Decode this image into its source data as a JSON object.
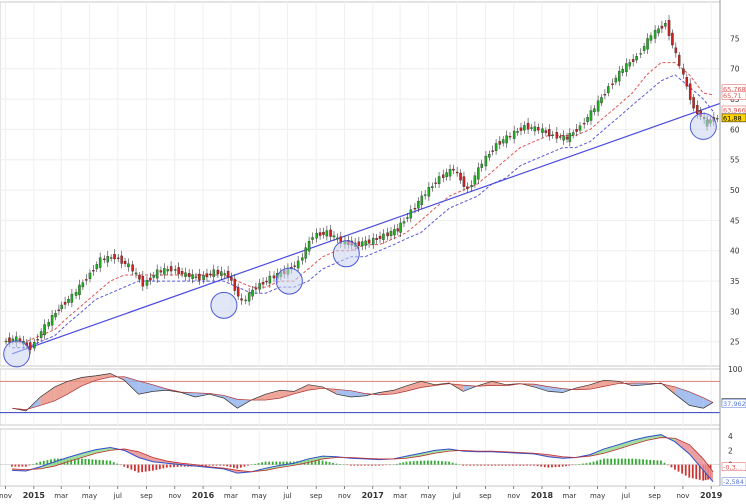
{
  "chart_data": [
    {
      "type": "candlestick",
      "panel": "price",
      "x": [
        "2014-11-15",
        "2014-12-15",
        "2015-01-15",
        "2015-02-15",
        "2015-03-15",
        "2015-04-15",
        "2015-05-15",
        "2015-06-15",
        "2015-07-15",
        "2015-08-15",
        "2015-09-15",
        "2015-10-15",
        "2015-11-15",
        "2015-12-15",
        "2016-01-15",
        "2016-02-15",
        "2016-03-15",
        "2016-04-15",
        "2016-05-15",
        "2016-06-15",
        "2016-07-15",
        "2016-08-15",
        "2016-09-15",
        "2016-10-15",
        "2016-11-15",
        "2016-12-15",
        "2017-01-15",
        "2017-02-15",
        "2017-03-15",
        "2017-04-15",
        "2017-05-15",
        "2017-06-15",
        "2017-07-15",
        "2017-08-15",
        "2017-09-15",
        "2017-10-15",
        "2017-11-15",
        "2017-12-15",
        "2018-01-15",
        "2018-02-15",
        "2018-03-15",
        "2018-04-15",
        "2018-05-15",
        "2018-06-15",
        "2018-07-15",
        "2018-08-15",
        "2018-09-15",
        "2018-10-15",
        "2018-11-15",
        "2018-12-15",
        "2019-01-05"
      ],
      "close": [
        25.5,
        24.0,
        27.5,
        30.5,
        32.5,
        35.5,
        38.5,
        39.0,
        37.5,
        34.5,
        36.5,
        37.0,
        36.0,
        35.5,
        36.5,
        36.0,
        31.5,
        34.0,
        35.5,
        36.5,
        38.0,
        42.5,
        43.0,
        41.5,
        41.0,
        41.5,
        42.5,
        43.5,
        46.5,
        49.5,
        52.0,
        53.5,
        50.0,
        54.5,
        57.5,
        59.0,
        60.5,
        60.0,
        59.0,
        58.5,
        60.5,
        63.5,
        67.0,
        70.0,
        72.0,
        75.5,
        77.5,
        70.5,
        63.5,
        61.0,
        61.9
      ],
      "ma_dashed": [
        {
          "color": "#e05555",
          "values": [
            25,
            25,
            26,
            27,
            29,
            31,
            33,
            35,
            36,
            36,
            36,
            36,
            36,
            36,
            36,
            36,
            35,
            34,
            34,
            35,
            35,
            37,
            39,
            40,
            40,
            41,
            41,
            42,
            43,
            45,
            47,
            49,
            50,
            51,
            53,
            55,
            57,
            58,
            59,
            59,
            59,
            60,
            62,
            64,
            66,
            69,
            71,
            71,
            69,
            66,
            65.7
          ]
        },
        {
          "color": "#5a5ad6",
          "values": [
            24,
            24,
            25,
            26,
            28,
            30,
            32,
            33,
            34,
            35,
            35,
            35,
            35,
            35,
            35,
            35,
            34,
            33,
            33,
            34,
            34,
            35,
            37,
            38,
            39,
            39,
            40,
            41,
            42,
            43,
            45,
            47,
            48,
            49,
            51,
            52,
            54,
            55,
            56,
            57,
            57,
            58,
            60,
            62,
            64,
            66,
            68,
            69,
            67,
            65,
            63
          ]
        }
      ],
      "trendline": {
        "from": [
          "2014-11-15",
          23.0
        ],
        "to": [
          "2019-01-05",
          63.3
        ]
      },
      "circled_lows": [
        [
          "2014-11-25",
          23.0
        ],
        [
          "2016-02-15",
          31.0
        ],
        [
          "2016-07-05",
          35.0
        ],
        [
          "2016-11-05",
          39.5
        ],
        [
          "2018-12-15",
          60.5
        ]
      ],
      "yticks": [
        25,
        30,
        35,
        40,
        45,
        50,
        55,
        60,
        65,
        70,
        75
      ],
      "ylim": [
        21,
        81
      ],
      "last_values": [
        {
          "label": "65,768",
          "value": 66.7,
          "color": "#e05555",
          "fill": "#ffffff"
        },
        {
          "label": "65,71",
          "value": 65.6,
          "color": "#e05555",
          "fill": "#ffffff"
        },
        {
          "label": "63,966",
          "value": 63.2,
          "color": "#e05555",
          "fill": "#ffffff"
        },
        {
          "label": "61,88",
          "value": 61.9,
          "color": "#000000",
          "fill": "#ffd400"
        }
      ]
    },
    {
      "type": "line",
      "panel": "oscillator",
      "yticks": [
        100
      ],
      "ylim": [
        0,
        100
      ],
      "upper_band": 78,
      "lower_band": 22,
      "values": [
        30,
        25,
        50,
        68,
        78,
        85,
        88,
        92,
        80,
        55,
        60,
        62,
        58,
        50,
        55,
        48,
        30,
        45,
        55,
        62,
        60,
        72,
        68,
        55,
        50,
        52,
        58,
        62,
        70,
        78,
        72,
        75,
        60,
        70,
        78,
        72,
        74,
        68,
        60,
        58,
        66,
        72,
        80,
        78,
        70,
        72,
        75,
        55,
        35,
        30,
        40.2
      ],
      "last_values": [
        {
          "label": "40,248",
          "value": 40.2,
          "color": "#000000",
          "fill": "#ffffff"
        },
        {
          "label": "37,962",
          "value": 38.0,
          "color": "#5a7bd6",
          "fill": "#ffffff"
        }
      ]
    },
    {
      "type": "histogram",
      "panel": "macd",
      "yticks": [
        4,
        2,
        0
      ],
      "ylim": [
        -3,
        5
      ],
      "values": [
        -0.8,
        -0.9,
        -0.3,
        0.4,
        1.0,
        1.6,
        2.1,
        2.4,
        2.0,
        1.0,
        0.4,
        0.2,
        0.0,
        -0.2,
        -0.4,
        -0.6,
        -1.2,
        -1.0,
        -0.5,
        -0.1,
        0.2,
        0.8,
        1.2,
        1.1,
        0.9,
        0.8,
        0.7,
        0.8,
        1.2,
        1.6,
        2.0,
        2.2,
        1.9,
        1.8,
        1.8,
        1.7,
        1.6,
        1.5,
        1.1,
        0.9,
        1.0,
        1.4,
        2.2,
        2.8,
        3.4,
        3.9,
        4.2,
        3.2,
        1.5,
        -0.8,
        -2.4
      ],
      "signal": [
        -0.6,
        -0.7,
        -0.6,
        -0.2,
        0.4,
        1.0,
        1.6,
        2.0,
        2.2,
        1.8,
        1.0,
        0.5,
        0.2,
        0.0,
        -0.3,
        -0.5,
        -0.8,
        -1.0,
        -0.8,
        -0.4,
        -0.1,
        0.3,
        0.8,
        1.0,
        1.0,
        0.9,
        0.8,
        0.8,
        0.9,
        1.2,
        1.6,
        1.9,
        2.0,
        1.9,
        1.9,
        1.8,
        1.7,
        1.6,
        1.4,
        1.1,
        1.0,
        1.2,
        1.6,
        2.2,
        2.8,
        3.4,
        3.8,
        3.7,
        2.8,
        0.8,
        -1.0
      ],
      "last_values": [
        {
          "label": "-0,3...",
          "value": -0.3,
          "color": "#e05555",
          "fill": "#ffffff"
        },
        {
          "label": "-2,584",
          "value": -2.4,
          "color": "#5a7bd6",
          "fill": "#ffffff"
        }
      ]
    }
  ],
  "xaxis": {
    "ticks": [
      {
        "label": "nov",
        "date": "2014-11-01"
      },
      {
        "label": "2015",
        "date": "2015-01-01",
        "bold": true
      },
      {
        "label": "mar",
        "date": "2015-03-01"
      },
      {
        "label": "may",
        "date": "2015-05-01"
      },
      {
        "label": "jul",
        "date": "2015-07-01"
      },
      {
        "label": "sep",
        "date": "2015-09-01"
      },
      {
        "label": "nov",
        "date": "2015-11-01"
      },
      {
        "label": "2016",
        "date": "2016-01-01",
        "bold": true
      },
      {
        "label": "mar",
        "date": "2016-03-01"
      },
      {
        "label": "may",
        "date": "2016-05-01"
      },
      {
        "label": "jul",
        "date": "2016-07-01"
      },
      {
        "label": "sep",
        "date": "2016-09-01"
      },
      {
        "label": "nov",
        "date": "2016-11-01"
      },
      {
        "label": "2017",
        "date": "2017-01-01",
        "bold": true
      },
      {
        "label": "mar",
        "date": "2017-03-01"
      },
      {
        "label": "may",
        "date": "2017-05-01"
      },
      {
        "label": "jul",
        "date": "2017-07-01"
      },
      {
        "label": "sep",
        "date": "2017-09-01"
      },
      {
        "label": "nov",
        "date": "2017-11-01"
      },
      {
        "label": "2018",
        "date": "2018-01-01",
        "bold": true
      },
      {
        "label": "mar",
        "date": "2018-03-01"
      },
      {
        "label": "may",
        "date": "2018-05-01"
      },
      {
        "label": "jul",
        "date": "2018-07-01"
      },
      {
        "label": "sep",
        "date": "2018-09-01"
      },
      {
        "label": "nov",
        "date": "2018-11-01"
      },
      {
        "label": "2019",
        "date": "2019-01-01",
        "bold": true
      }
    ],
    "range": [
      "2014-10-20",
      "2019-01-20"
    ]
  },
  "colors": {
    "up": "#22aa22",
    "down": "#cc2222",
    "trendline": "#4a4ae0",
    "circle_fill": "#c8d4f0",
    "circle_stroke": "#4a5ad6",
    "band_upper": "#e08070",
    "band_lower": "#3040c0",
    "cloud_up": "#e89080",
    "cloud_down": "#8fb0ea",
    "hist_up": "#33aa33",
    "hist_down": "#cc3333",
    "macd_line": "#3050cc",
    "macd_fill_up": "#90d890",
    "macd_fill_down": "#e89090"
  }
}
